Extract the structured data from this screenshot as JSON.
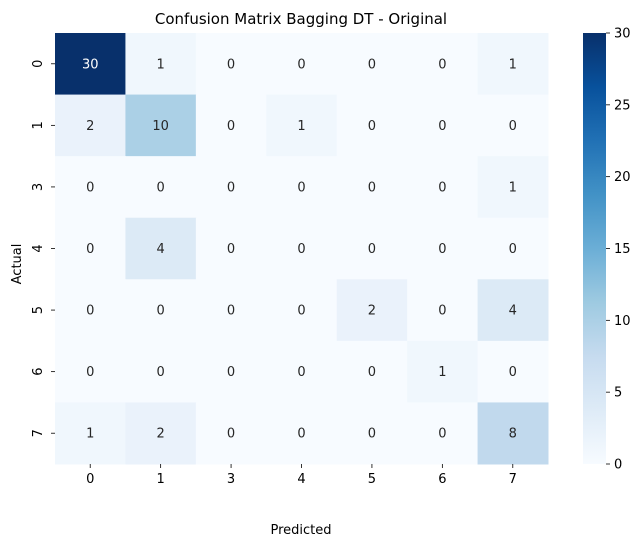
{
  "chart_data": {
    "type": "heatmap",
    "title": "Confusion Matrix Bagging DT - Original",
    "xlabel": "Predicted",
    "ylabel": "Actual",
    "x_categories": [
      "0",
      "1",
      "3",
      "4",
      "5",
      "6",
      "7"
    ],
    "y_categories": [
      "0",
      "1",
      "3",
      "4",
      "5",
      "6",
      "7"
    ],
    "values": [
      [
        30,
        1,
        0,
        0,
        0,
        0,
        1
      ],
      [
        2,
        10,
        0,
        1,
        0,
        0,
        0
      ],
      [
        0,
        0,
        0,
        0,
        0,
        0,
        1
      ],
      [
        0,
        4,
        0,
        0,
        0,
        0,
        0
      ],
      [
        0,
        0,
        0,
        0,
        2,
        0,
        4
      ],
      [
        0,
        0,
        0,
        0,
        0,
        1,
        0
      ],
      [
        1,
        2,
        0,
        0,
        0,
        0,
        8
      ]
    ],
    "colormap": "Blues",
    "colorbar": {
      "range": [
        0,
        30
      ],
      "ticks": [
        0,
        5,
        10,
        15,
        20,
        25,
        30
      ]
    }
  }
}
